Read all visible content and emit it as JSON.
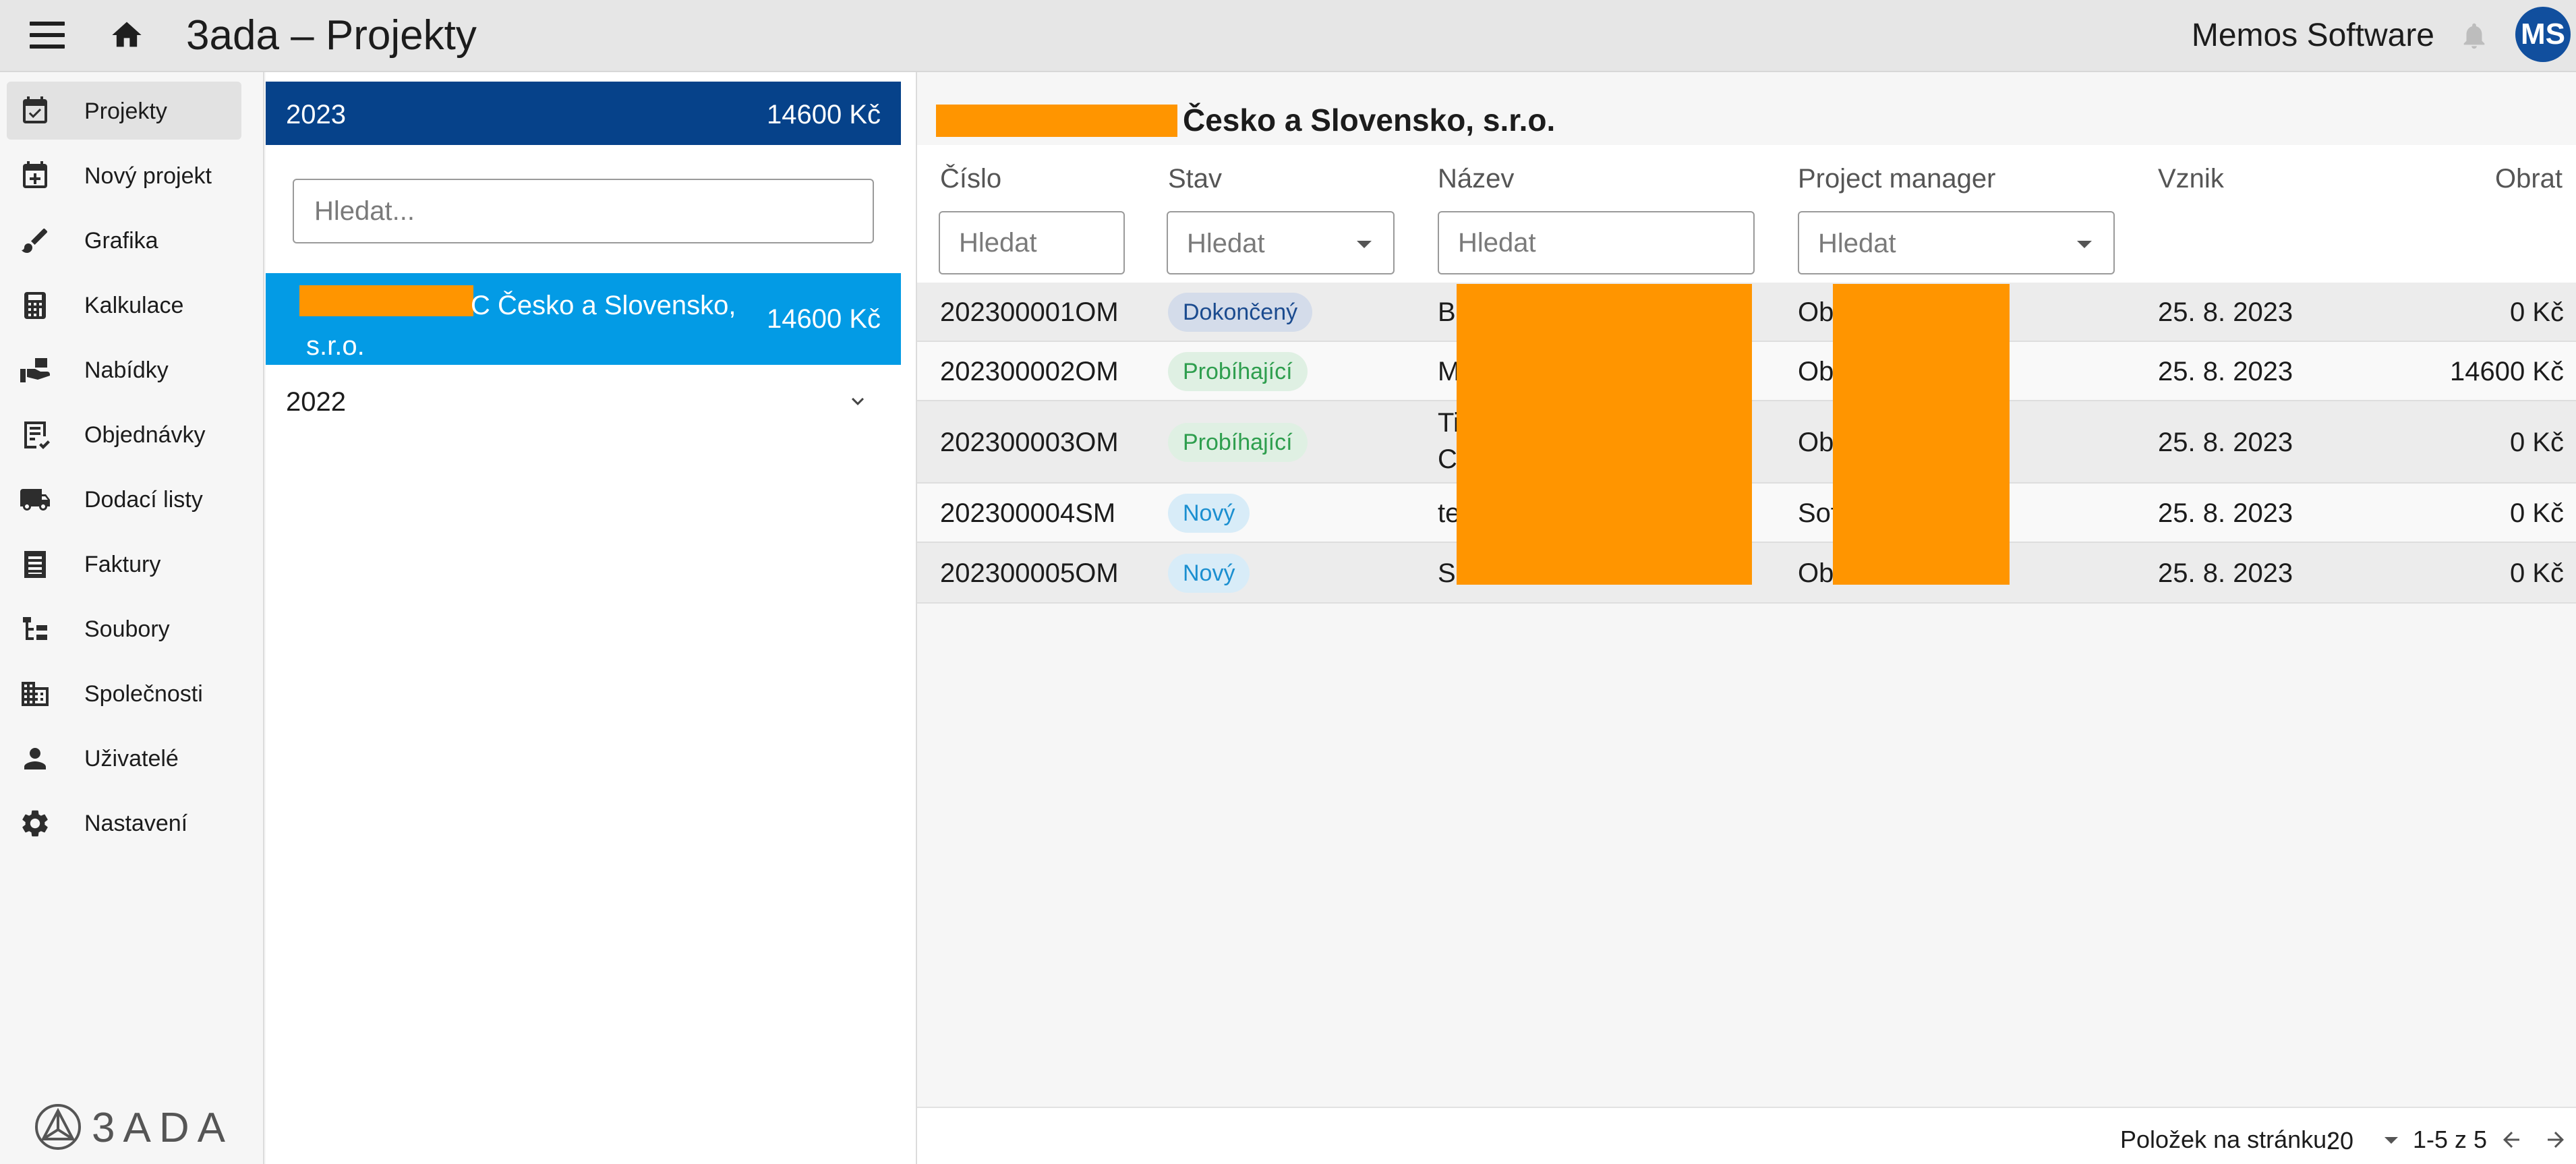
{
  "header": {
    "app_title": "3ada – Projekty",
    "company": "Memos Software",
    "avatar_initials": "MS",
    "avatar_color": "#114f9e"
  },
  "sidebar": {
    "items": [
      {
        "label": "Projekty",
        "icon": "calendar-check-icon",
        "active": true
      },
      {
        "label": "Nový projekt",
        "icon": "calendar-plus-icon"
      },
      {
        "label": "Grafika",
        "icon": "brush-icon"
      },
      {
        "label": "Kalkulace",
        "icon": "calculator-icon"
      },
      {
        "label": "Nabídky",
        "icon": "hand-offer-icon"
      },
      {
        "label": "Objednávky",
        "icon": "order-list-icon"
      },
      {
        "label": "Dodací listy",
        "icon": "truck-icon"
      },
      {
        "label": "Faktury",
        "icon": "invoice-icon"
      },
      {
        "label": "Soubory",
        "icon": "file-tree-icon"
      },
      {
        "label": "Společnosti",
        "icon": "building-icon"
      },
      {
        "label": "Uživatelé",
        "icon": "person-icon"
      },
      {
        "label": "Nastavení",
        "icon": "gear-icon"
      }
    ],
    "logo_text": "3ADA"
  },
  "projects_panel": {
    "year_current": "2023",
    "year_current_total": "14600 Kč",
    "search_placeholder": "Hledat...",
    "selected_project_name": "C Česko a Slovensko, s.r.o.",
    "selected_project_total": "14600 Kč",
    "year_other": "2022"
  },
  "detail": {
    "title": "Česko a Slovensko, s.r.o.",
    "columns": {
      "cislo": "Číslo",
      "stav": "Stav",
      "nazev": "Název",
      "pm": "Project manager",
      "vznik": "Vznik",
      "obrat": "Obrat"
    },
    "filter_placeholder": "Hledat",
    "rows": [
      {
        "cislo": "202300001OM",
        "stav": "Dokončený",
        "stav_type": "done",
        "nazev": "Bu",
        "nazev2": "",
        "pm": "Ob",
        "vznik": "25. 8. 2023",
        "obrat": "0 Kč"
      },
      {
        "cislo": "202300002OM",
        "stav": "Probíhající",
        "stav_type": "progress",
        "nazev": "M",
        "nazev2": "",
        "pm": "Ob",
        "vznik": "25. 8. 2023",
        "obrat": "14600 Kč"
      },
      {
        "cislo": "202300003OM",
        "stav": "Probíhající",
        "stav_type": "progress",
        "nazev": "Ti",
        "nazev2": "C",
        "pm": "Ob",
        "vznik": "25. 8. 2023",
        "obrat": "0 Kč"
      },
      {
        "cislo": "202300004SM",
        "stav": "Nový",
        "stav_type": "new",
        "nazev": "te",
        "nazev2": "",
        "pm": "Sof",
        "vznik": "25. 8. 2023",
        "obrat": "0 Kč"
      },
      {
        "cislo": "202300005OM",
        "stav": "Nový",
        "stav_type": "new",
        "nazev": "S",
        "nazev2": "",
        "pm": "Ob",
        "vznik": "25. 8. 2023",
        "obrat": "0 Kč"
      }
    ]
  },
  "pagination": {
    "per_page_label": "Položek na stránku:",
    "per_page_value": "20",
    "range": "1-5 z 5"
  },
  "colors": {
    "year_bar": "#06428a",
    "selected_card": "#039be5",
    "redaction": "#ff9500"
  }
}
